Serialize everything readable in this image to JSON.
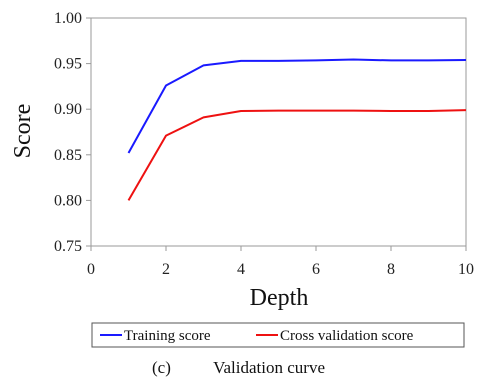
{
  "caption": {
    "label": "(c)",
    "text": "Validation curve"
  },
  "chart_data": {
    "type": "line",
    "title": "",
    "xlabel": "Depth",
    "ylabel": "Score",
    "xlim": [
      0,
      10
    ],
    "ylim": [
      0.75,
      1.0
    ],
    "xticks": [
      0,
      2,
      4,
      6,
      8,
      10
    ],
    "yticks": [
      0.75,
      0.8,
      0.85,
      0.9,
      0.95,
      1.0
    ],
    "ytick_labels": [
      "0.75",
      "0.80",
      "0.85",
      "0.90",
      "0.95",
      "1.00"
    ],
    "grid": false,
    "legend_position": "bottom",
    "x": [
      1,
      2,
      3,
      4,
      5,
      6,
      7,
      8,
      9,
      10
    ],
    "series": [
      {
        "name": "Training score",
        "color": "#1a1aff",
        "values": [
          0.852,
          0.926,
          0.948,
          0.953,
          0.953,
          0.9535,
          0.9545,
          0.9535,
          0.9535,
          0.954
        ]
      },
      {
        "name": "Cross validation score",
        "color": "#ee1111",
        "values": [
          0.8,
          0.871,
          0.891,
          0.898,
          0.8985,
          0.8985,
          0.8985,
          0.898,
          0.898,
          0.899
        ]
      }
    ]
  }
}
